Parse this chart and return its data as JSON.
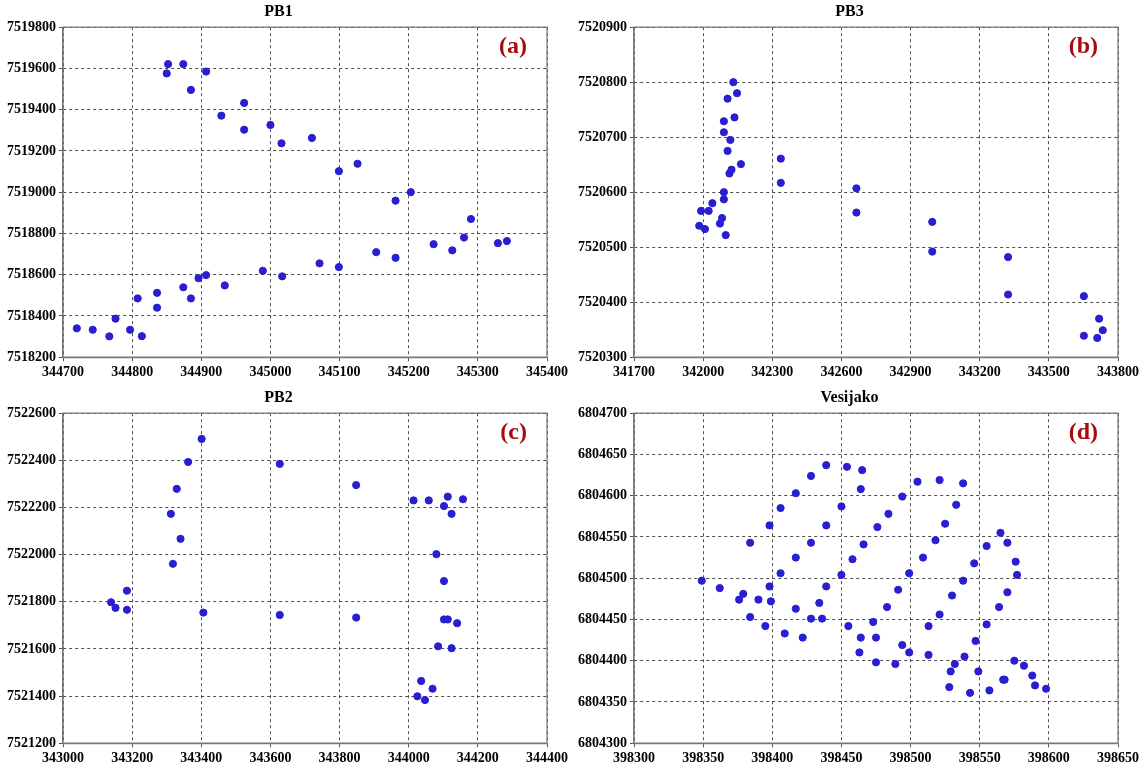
{
  "chart_data": [
    {
      "type": "scatter",
      "title": "PB1",
      "annotations": [
        "(a)"
      ],
      "marker": "circle",
      "grid": true,
      "color": "#2a1fd0",
      "x": [
        345342,
        345290,
        345203,
        345126,
        345060,
        345000,
        344962,
        344907,
        344874,
        344852,
        344850,
        344885,
        344929,
        344962,
        345016,
        345099,
        345181,
        345280,
        345236,
        345153,
        345071,
        344989,
        344907,
        345329,
        345263,
        345181,
        345099,
        345017,
        344934,
        344885,
        344836,
        344808,
        344776,
        344743,
        344720,
        344767,
        344797,
        344836,
        344874,
        344896,
        344814
      ],
      "values": [
        7518763,
        7518870,
        7519000,
        7519138,
        7519263,
        7519326,
        7519433,
        7519585,
        7519621,
        7519621,
        7519576,
        7519496,
        7519371,
        7519303,
        7519237,
        7519102,
        7518959,
        7518780,
        7518748,
        7518709,
        7518655,
        7518619,
        7518598,
        7518753,
        7518718,
        7518682,
        7518637,
        7518592,
        7518548,
        7518485,
        7518512,
        7518485,
        7518387,
        7518333,
        7518340,
        7518301,
        7518333,
        7518440,
        7518539,
        7518583,
        7518302
      ],
      "xlim": [
        344700,
        345400
      ],
      "xticks": [
        344700,
        344800,
        344900,
        345000,
        345100,
        345200,
        345300,
        345400
      ],
      "ylim": [
        7518200,
        7519800
      ],
      "yticks": [
        7518200,
        7518400,
        7518600,
        7518800,
        7519000,
        7519200,
        7519400,
        7519600,
        7519800
      ]
    },
    {
      "type": "scatter",
      "title": "PB3",
      "annotations": [
        "(b)"
      ],
      "marker": "circle",
      "grid": true,
      "color": "#2a1fd0",
      "x": [
        342090,
        342337,
        342665,
        342994,
        343323,
        343652,
        343718,
        343734,
        343710,
        343652,
        343323,
        342994,
        342665,
        342337,
        342164,
        342123,
        342106,
        342090,
        342106,
        342131,
        342147,
        342136,
        342118,
        342114,
        342090,
        342040,
        341991,
        341983,
        342008,
        342024,
        342073,
        342098,
        342082,
        342090
      ],
      "values": [
        7520709,
        7520661,
        7520607,
        7520546,
        7520482,
        7520411,
        7520370,
        7520349,
        7520335,
        7520339,
        7520414,
        7520492,
        7520563,
        7520617,
        7520651,
        7520641,
        7520675,
        7520729,
        7520770,
        7520800,
        7520780,
        7520736,
        7520695,
        7520634,
        7520600,
        7520580,
        7520566,
        7520539,
        7520533,
        7520566,
        7520543,
        7520522,
        7520553,
        7520587
      ],
      "xlim": [
        341700,
        343800
      ],
      "xticks": [
        341700,
        342000,
        342300,
        342600,
        342900,
        343200,
        343500,
        343800
      ],
      "ylim": [
        7520300,
        7520900
      ],
      "yticks": [
        7520300,
        7520400,
        7520500,
        7520600,
        7520700,
        7520800,
        7520900
      ]
    },
    {
      "type": "scatter",
      "title": "PB2",
      "annotations": [
        "(c)"
      ],
      "marker": "circle",
      "grid": true,
      "color": "#2a1fd0",
      "x": [
        343401,
        343627,
        343848,
        344014,
        344102,
        344124,
        344080,
        344102,
        344102,
        344085,
        344036,
        344025,
        344047,
        344069,
        344124,
        344140,
        344113,
        343848,
        343627,
        343406,
        343185,
        343152,
        343139,
        343185,
        343318,
        343340,
        343312,
        343329,
        343362,
        344058,
        344113,
        344157
      ],
      "values": [
        7522491,
        7522385,
        7522295,
        7522230,
        7522206,
        7522173,
        7522002,
        7521888,
        7521725,
        7521611,
        7521464,
        7521399,
        7521383,
        7521431,
        7521603,
        7521709,
        7521725,
        7521733,
        7521744,
        7521754,
        7521766,
        7521774,
        7521798,
        7521847,
        7521961,
        7522067,
        7522173,
        7522279,
        7522393,
        7522230,
        7522246,
        7522235
      ],
      "xlim": [
        343000,
        344400
      ],
      "xticks": [
        343000,
        343200,
        343400,
        343600,
        343800,
        344000,
        344200,
        344400
      ],
      "ylim": [
        7521200,
        7522600
      ],
      "yticks": [
        7521200,
        7521400,
        7521600,
        7521800,
        7522000,
        7522200,
        7522400,
        7522600
      ]
    },
    {
      "type": "scatter",
      "title": "Vesijako",
      "annotations": [
        "(d)"
      ],
      "marker": "circle",
      "grid": true,
      "color": "#2a1fd0",
      "x": [
        398349,
        398362,
        398379,
        398399,
        398417,
        398436,
        398455,
        398475,
        398494,
        398513,
        398532,
        398549,
        398568,
        398590,
        398598,
        398376,
        398384,
        398395,
        398409,
        398422,
        398384,
        398398,
        398406,
        398417,
        398428,
        398439,
        398454,
        398465,
        398464,
        398450,
        398439,
        398428,
        398417,
        398406,
        398398,
        398390,
        398428,
        398434,
        398439,
        398450,
        398458,
        398466,
        398476,
        398484,
        398494,
        398505,
        398521,
        398538,
        398533,
        398525,
        398518,
        398509,
        398499,
        398491,
        398483,
        398473,
        398464,
        398463,
        398475,
        398489,
        398499,
        398513,
        398521,
        398530,
        398538,
        398546,
        398555,
        398565,
        398570,
        398576,
        398577,
        398570,
        398564,
        398555,
        398547,
        398539,
        398529,
        398528,
        398543,
        398557,
        398567,
        398575,
        398582,
        398588
      ],
      "values": [
        6804497,
        6804488,
        6804481,
        6804472,
        6804463,
        6804451,
        6804442,
        6804428,
        6804419,
        6804407,
        6804396,
        6804387,
        6804377,
        6804370,
        6804366,
        6804474,
        6804453,
        6804442,
        6804433,
        6804428,
        6804543,
        6804564,
        6804585,
        6804603,
        6804624,
        6804637,
        6804635,
        6804631,
        6804608,
        6804587,
        6804564,
        6804543,
        6804525,
        6804506,
        6804490,
        6804474,
        6804451,
        6804470,
        6804490,
        6804504,
        6804523,
        6804541,
        6804562,
        6804578,
        6804599,
        6804617,
        6804619,
        6804615,
        6804589,
        6804566,
        6804546,
        6804525,
        6804506,
        6804486,
        6804465,
        6804447,
        6804428,
        6804410,
        6804398,
        6804396,
        6804410,
        6804442,
        6804456,
        6804479,
        6804497,
        6804518,
        6804539,
        6804555,
        6804543,
        6804520,
        6804504,
        6804483,
        6804465,
        6804444,
        6804424,
        6804405,
        6804387,
        6804368,
        6804361,
        6804364,
        6804377,
        6804400,
        6804394,
        6804382
      ],
      "xlim": [
        398300,
        398650
      ],
      "xticks": [
        398300,
        398350,
        398400,
        398450,
        398500,
        398550,
        398600,
        398650
      ],
      "ylim": [
        6804300,
        6804700
      ],
      "yticks": [
        6804300,
        6804350,
        6804400,
        6804450,
        6804500,
        6804550,
        6804600,
        6804650,
        6804700
      ]
    }
  ]
}
